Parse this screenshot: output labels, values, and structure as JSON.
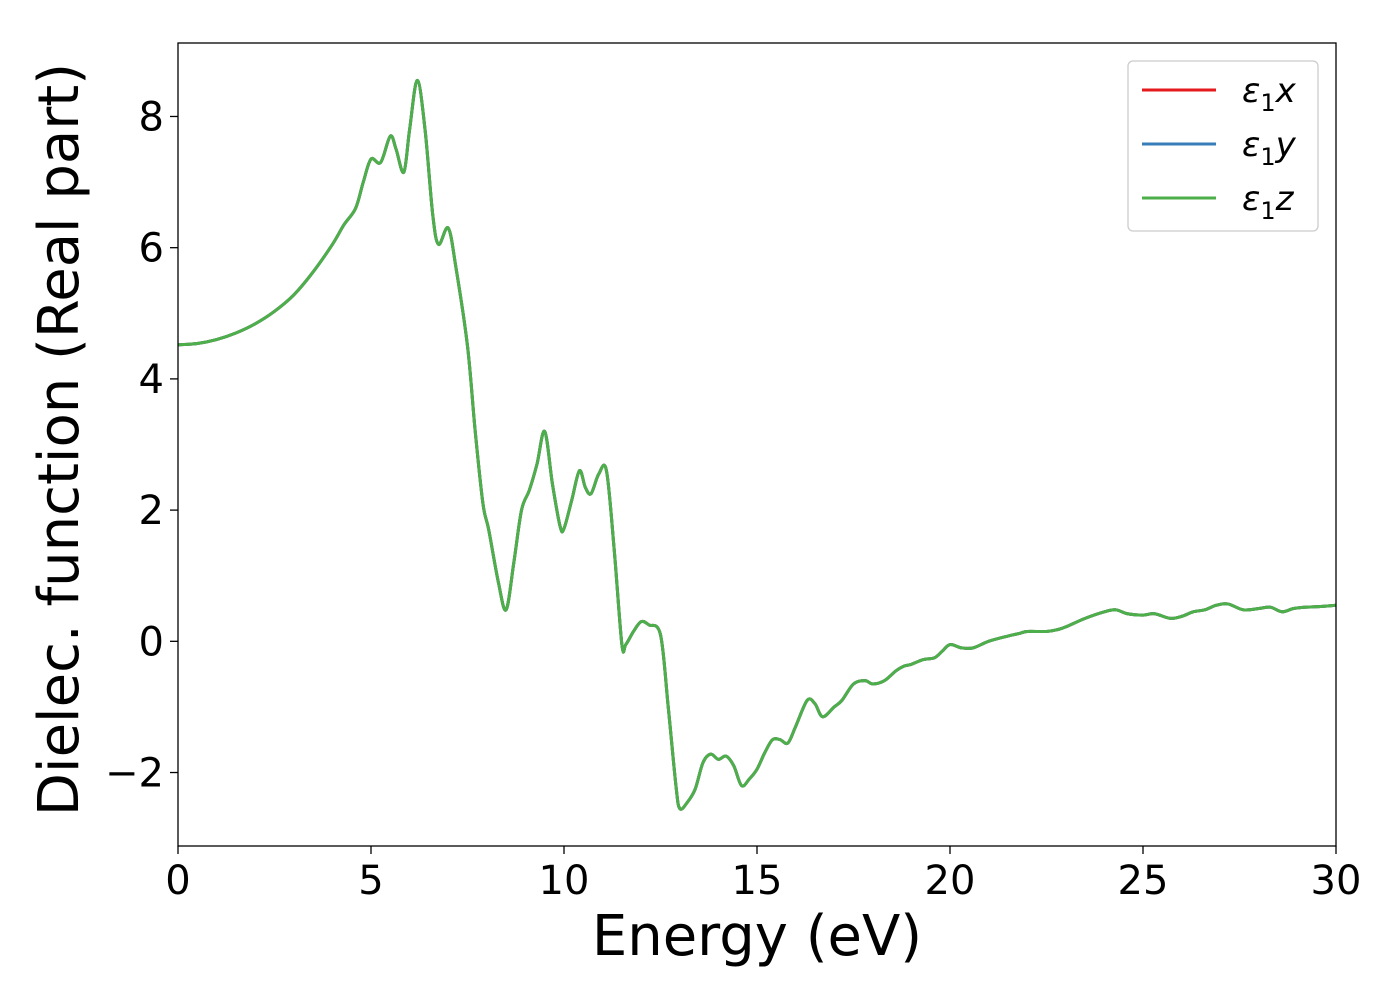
{
  "chart_data": {
    "type": "line",
    "xlabel": "Energy (eV)",
    "ylabel": "Dielec. function (Real part)",
    "xlim": [
      0,
      30
    ],
    "ylim": [
      -3.12,
      9.12
    ],
    "xticks": [
      0,
      5,
      10,
      15,
      20,
      25,
      30
    ],
    "xtick_labels": [
      "0",
      "5",
      "10",
      "15",
      "20",
      "25",
      "30"
    ],
    "yticks": [
      -2,
      0,
      2,
      4,
      6,
      8
    ],
    "ytick_labels": [
      "−2",
      "0",
      "2",
      "4",
      "6",
      "8"
    ],
    "grid": false,
    "legend": "top-right",
    "x": [
      0,
      0.5,
      1.0,
      1.5,
      2.0,
      2.5,
      3.0,
      3.5,
      4.0,
      4.3,
      4.6,
      4.8,
      5.0,
      5.25,
      5.5,
      5.65,
      5.85,
      6.0,
      6.2,
      6.4,
      6.6,
      6.75,
      7.0,
      7.2,
      7.5,
      7.7,
      7.9,
      8.05,
      8.3,
      8.5,
      8.7,
      8.9,
      9.1,
      9.3,
      9.5,
      9.7,
      9.9,
      10.0,
      10.2,
      10.4,
      10.55,
      10.7,
      10.9,
      11.1,
      11.3,
      11.5,
      11.6,
      11.8,
      12.0,
      12.2,
      12.5,
      12.7,
      12.9,
      13.0,
      13.2,
      13.4,
      13.6,
      13.8,
      14.0,
      14.2,
      14.4,
      14.6,
      14.8,
      15.0,
      15.2,
      15.4,
      15.6,
      15.8,
      16.0,
      16.3,
      16.5,
      16.7,
      17.0,
      17.2,
      17.5,
      17.8,
      18.0,
      18.3,
      18.6,
      18.8,
      19.0,
      19.3,
      19.6,
      19.8,
      20.0,
      20.3,
      20.6,
      21.0,
      21.5,
      21.8,
      22.0,
      22.5,
      22.8,
      23.0,
      23.5,
      24.0,
      24.3,
      24.6,
      25.0,
      25.3,
      25.7,
      26.0,
      26.3,
      26.6,
      26.9,
      27.2,
      27.6,
      28.0,
      28.3,
      28.6,
      28.9,
      29.2,
      29.6,
      30.0
    ],
    "series": [
      {
        "name": "ε1x",
        "color": "#e41a1c",
        "values": [
          4.52,
          4.54,
          4.6,
          4.7,
          4.84,
          5.03,
          5.28,
          5.63,
          6.05,
          6.35,
          6.6,
          7.0,
          7.35,
          7.3,
          7.7,
          7.5,
          7.15,
          7.8,
          8.55,
          7.8,
          6.5,
          6.05,
          6.3,
          5.7,
          4.5,
          3.2,
          2.1,
          1.7,
          0.9,
          0.48,
          1.2,
          2.0,
          2.3,
          2.7,
          3.2,
          2.4,
          1.75,
          1.72,
          2.15,
          2.6,
          2.35,
          2.25,
          2.55,
          2.6,
          1.4,
          -0.05,
          -0.05,
          0.15,
          0.3,
          0.25,
          0.1,
          -1.0,
          -2.2,
          -2.55,
          -2.45,
          -2.25,
          -1.85,
          -1.72,
          -1.8,
          -1.75,
          -1.9,
          -2.2,
          -2.1,
          -1.95,
          -1.7,
          -1.5,
          -1.5,
          -1.55,
          -1.3,
          -0.9,
          -0.95,
          -1.15,
          -1.0,
          -0.9,
          -0.65,
          -0.6,
          -0.65,
          -0.6,
          -0.45,
          -0.38,
          -0.35,
          -0.28,
          -0.25,
          -0.15,
          -0.05,
          -0.1,
          -0.1,
          0.0,
          0.08,
          0.12,
          0.15,
          0.15,
          0.18,
          0.22,
          0.35,
          0.45,
          0.48,
          0.42,
          0.4,
          0.42,
          0.35,
          0.38,
          0.45,
          0.48,
          0.55,
          0.57,
          0.48,
          0.5,
          0.52,
          0.45,
          0.5,
          0.52,
          0.53,
          0.55
        ]
      },
      {
        "name": "ε1y",
        "color": "#377eb8",
        "values": [
          4.52,
          4.54,
          4.6,
          4.7,
          4.84,
          5.03,
          5.28,
          5.63,
          6.05,
          6.35,
          6.6,
          7.0,
          7.35,
          7.3,
          7.7,
          7.5,
          7.15,
          7.8,
          8.55,
          7.8,
          6.5,
          6.05,
          6.3,
          5.7,
          4.5,
          3.2,
          2.1,
          1.7,
          0.9,
          0.48,
          1.2,
          2.0,
          2.3,
          2.7,
          3.2,
          2.4,
          1.75,
          1.72,
          2.15,
          2.6,
          2.35,
          2.25,
          2.55,
          2.6,
          1.4,
          -0.05,
          -0.05,
          0.15,
          0.3,
          0.25,
          0.1,
          -1.0,
          -2.2,
          -2.55,
          -2.45,
          -2.25,
          -1.85,
          -1.72,
          -1.8,
          -1.75,
          -1.9,
          -2.2,
          -2.1,
          -1.95,
          -1.7,
          -1.5,
          -1.5,
          -1.55,
          -1.3,
          -0.9,
          -0.95,
          -1.15,
          -1.0,
          -0.9,
          -0.65,
          -0.6,
          -0.65,
          -0.6,
          -0.45,
          -0.38,
          -0.35,
          -0.28,
          -0.25,
          -0.15,
          -0.05,
          -0.1,
          -0.1,
          0.0,
          0.08,
          0.12,
          0.15,
          0.15,
          0.18,
          0.22,
          0.35,
          0.45,
          0.48,
          0.42,
          0.4,
          0.42,
          0.35,
          0.38,
          0.45,
          0.48,
          0.55,
          0.57,
          0.48,
          0.5,
          0.52,
          0.45,
          0.5,
          0.52,
          0.53,
          0.55
        ]
      },
      {
        "name": "ε1z",
        "color": "#4daf4a",
        "values": [
          4.52,
          4.54,
          4.6,
          4.7,
          4.84,
          5.03,
          5.28,
          5.63,
          6.05,
          6.35,
          6.6,
          7.0,
          7.35,
          7.3,
          7.7,
          7.5,
          7.15,
          7.8,
          8.55,
          7.8,
          6.5,
          6.05,
          6.3,
          5.7,
          4.5,
          3.2,
          2.1,
          1.7,
          0.9,
          0.48,
          1.2,
          2.0,
          2.3,
          2.7,
          3.2,
          2.4,
          1.75,
          1.72,
          2.15,
          2.6,
          2.35,
          2.25,
          2.55,
          2.6,
          1.4,
          -0.05,
          -0.05,
          0.15,
          0.3,
          0.25,
          0.1,
          -1.0,
          -2.2,
          -2.55,
          -2.45,
          -2.25,
          -1.85,
          -1.72,
          -1.8,
          -1.75,
          -1.9,
          -2.2,
          -2.1,
          -1.95,
          -1.7,
          -1.5,
          -1.5,
          -1.55,
          -1.3,
          -0.9,
          -0.95,
          -1.15,
          -1.0,
          -0.9,
          -0.65,
          -0.6,
          -0.65,
          -0.6,
          -0.45,
          -0.38,
          -0.35,
          -0.28,
          -0.25,
          -0.15,
          -0.05,
          -0.1,
          -0.1,
          0.0,
          0.08,
          0.12,
          0.15,
          0.15,
          0.18,
          0.22,
          0.35,
          0.45,
          0.48,
          0.42,
          0.4,
          0.42,
          0.35,
          0.38,
          0.45,
          0.48,
          0.55,
          0.57,
          0.48,
          0.5,
          0.52,
          0.45,
          0.5,
          0.52,
          0.53,
          0.55
        ]
      }
    ],
    "legend_entries": [
      {
        "symbol": "ε",
        "sub": "1",
        "axis": "x"
      },
      {
        "symbol": "ε",
        "sub": "1",
        "axis": "y"
      },
      {
        "symbol": "ε",
        "sub": "1",
        "axis": "z"
      }
    ]
  }
}
